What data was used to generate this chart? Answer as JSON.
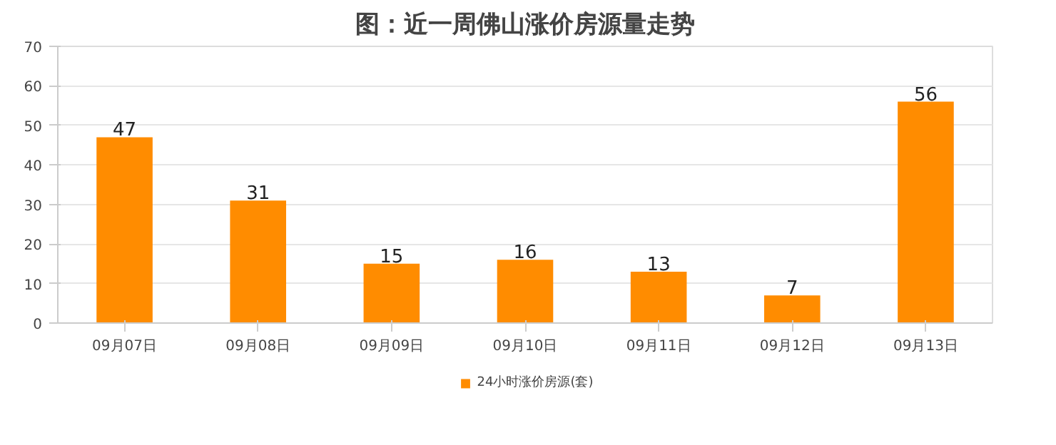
{
  "chart_data": {
    "type": "bar",
    "title": "图：近一周佛山涨价房源量走势",
    "categories": [
      "09月07日",
      "09月08日",
      "09月09日",
      "09月10日",
      "09月11日",
      "09月12日",
      "09月13日"
    ],
    "series": [
      {
        "name": "24小时涨价房源(套)",
        "color": "#ff8c00",
        "values": [
          47,
          31,
          15,
          16,
          13,
          7,
          56
        ]
      }
    ],
    "ylim": [
      0,
      70
    ],
    "yticks": [
      0,
      10,
      20,
      30,
      40,
      50,
      60,
      70
    ],
    "grid": "y",
    "legend": "bottom",
    "data_labels": true
  }
}
